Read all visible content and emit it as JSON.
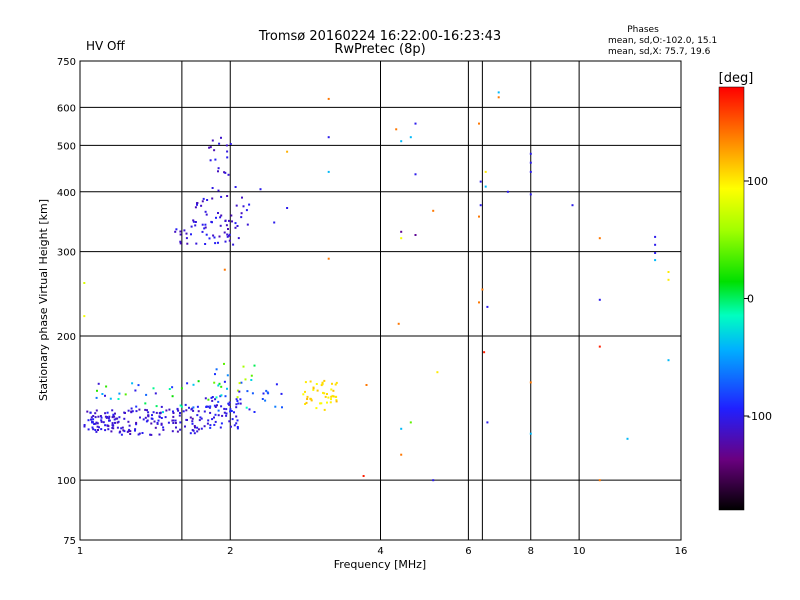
{
  "header": {
    "title_line1": "Tromsø 20160224 16:22:00-16:23:43",
    "title_line2": "RwPretec (8p)",
    "status": "HV Off",
    "status_color": "#cc0000",
    "phases_title": "Phases",
    "phases_line1": "mean, sd,O:-102.0, 15.1",
    "phases_line2": "mean, sd,X:  75.7, 19.6"
  },
  "colorbar": {
    "unit": "[deg]",
    "range": [
      -180,
      180
    ],
    "ticks": [
      {
        "value": 100,
        "label": "100"
      },
      {
        "value": 0,
        "label": "0"
      },
      {
        "value": -100,
        "label": "-100"
      }
    ]
  },
  "chart_data": {
    "type": "scatter",
    "title": "Tromsø 20160224 16:22:00-16:23:43",
    "subtitle": "RwPretec (8p)",
    "xlabel": "Frequency [MHz]",
    "ylabel": "Stationary phase Virtual Height [km]",
    "x_scale": "log",
    "y_scale": "log",
    "xlim": [
      1,
      16
    ],
    "ylim": [
      75,
      750
    ],
    "x_ticks": [
      {
        "v": 1,
        "label": "1"
      },
      {
        "v": 2,
        "label": "2"
      },
      {
        "v": 4,
        "label": "4"
      },
      {
        "v": 6,
        "label": "6"
      },
      {
        "v": 8,
        "label": "8"
      },
      {
        "v": 10,
        "label": "10"
      },
      {
        "v": 16,
        "label": "16"
      }
    ],
    "y_ticks": [
      {
        "v": 75,
        "label": "75"
      },
      {
        "v": 100,
        "label": "100"
      },
      {
        "v": 200,
        "label": "200"
      },
      {
        "v": 300,
        "label": "300"
      },
      {
        "v": 400,
        "label": "400"
      },
      {
        "v": 500,
        "label": "500"
      },
      {
        "v": 600,
        "label": "600"
      },
      {
        "v": 750,
        "label": "750"
      }
    ],
    "grid_x": [
      1.6,
      2,
      4,
      6,
      6.4,
      8,
      10,
      16
    ],
    "grid_y": [
      100,
      200,
      300,
      400,
      500,
      600
    ],
    "clusters": [
      {
        "f": [
          1.02,
          1.2
        ],
        "h": [
          126,
          140
        ],
        "n": 70,
        "ph": [
          -120,
          -95
        ]
      },
      {
        "f": [
          1.2,
          1.45
        ],
        "h": [
          124,
          142
        ],
        "n": 60,
        "ph": [
          -120,
          -95
        ]
      },
      {
        "f": [
          1.45,
          1.75
        ],
        "h": [
          125,
          143
        ],
        "n": 55,
        "ph": [
          -120,
          -95
        ]
      },
      {
        "f": [
          1.75,
          2.1
        ],
        "h": [
          128,
          150
        ],
        "n": 60,
        "ph": [
          -115,
          -90
        ]
      },
      {
        "f": [
          1.05,
          2.0
        ],
        "h": [
          138,
          162
        ],
        "n": 40,
        "ph": [
          -110,
          40
        ]
      },
      {
        "f": [
          1.85,
          2.25
        ],
        "h": [
          140,
          175
        ],
        "n": 25,
        "ph": [
          -110,
          80
        ]
      },
      {
        "f": [
          2.2,
          2.55
        ],
        "h": [
          138,
          160
        ],
        "n": 12,
        "ph": [
          -100,
          -60
        ]
      },
      {
        "f": [
          2.8,
          3.3
        ],
        "h": [
          140,
          162
        ],
        "n": 45,
        "ph": [
          90,
          120
        ]
      },
      {
        "f": [
          1.55,
          2.1
        ],
        "h": [
          310,
          350
        ],
        "n": 45,
        "ph": [
          -120,
          -95
        ]
      },
      {
        "f": [
          1.7,
          2.2
        ],
        "h": [
          340,
          390
        ],
        "n": 30,
        "ph": [
          -120,
          -95
        ]
      },
      {
        "f": [
          1.8,
          2.05
        ],
        "h": [
          390,
          520
        ],
        "n": 22,
        "ph": [
          -120,
          -95
        ]
      }
    ],
    "points": [
      {
        "f": 1.02,
        "h": 258,
        "ph": 80
      },
      {
        "f": 1.02,
        "h": 220,
        "ph": 90
      },
      {
        "f": 1.95,
        "h": 275,
        "ph": 140
      },
      {
        "f": 2.6,
        "h": 370,
        "ph": -100
      },
      {
        "f": 2.45,
        "h": 345,
        "ph": -100
      },
      {
        "f": 2.6,
        "h": 485,
        "ph": 120
      },
      {
        "f": 2.3,
        "h": 405,
        "ph": -100
      },
      {
        "f": 3.15,
        "h": 625,
        "ph": 140
      },
      {
        "f": 3.15,
        "h": 520,
        "ph": -100
      },
      {
        "f": 3.15,
        "h": 440,
        "ph": -40
      },
      {
        "f": 3.15,
        "h": 290,
        "ph": 140
      },
      {
        "f": 3.75,
        "h": 158,
        "ph": 140
      },
      {
        "f": 3.7,
        "h": 102,
        "ph": 170
      },
      {
        "f": 4.3,
        "h": 540,
        "ph": 140
      },
      {
        "f": 4.4,
        "h": 510,
        "ph": -40
      },
      {
        "f": 4.6,
        "h": 520,
        "ph": -40
      },
      {
        "f": 4.7,
        "h": 555,
        "ph": -100
      },
      {
        "f": 4.7,
        "h": 435,
        "ph": -100
      },
      {
        "f": 4.4,
        "h": 330,
        "ph": -130
      },
      {
        "f": 4.4,
        "h": 320,
        "ph": 90
      },
      {
        "f": 4.7,
        "h": 325,
        "ph": -130
      },
      {
        "f": 4.35,
        "h": 212,
        "ph": 140
      },
      {
        "f": 4.4,
        "h": 128,
        "ph": -40
      },
      {
        "f": 4.6,
        "h": 132,
        "ph": 40
      },
      {
        "f": 4.4,
        "h": 113,
        "ph": 140
      },
      {
        "f": 5.1,
        "h": 365,
        "ph": 140
      },
      {
        "f": 5.2,
        "h": 168,
        "ph": 100
      },
      {
        "f": 5.1,
        "h": 100,
        "ph": -100
      },
      {
        "f": 6.3,
        "h": 555,
        "ph": 140
      },
      {
        "f": 6.35,
        "h": 420,
        "ph": -100
      },
      {
        "f": 6.5,
        "h": 410,
        "ph": -40
      },
      {
        "f": 6.5,
        "h": 440,
        "ph": 100
      },
      {
        "f": 6.35,
        "h": 375,
        "ph": -100
      },
      {
        "f": 6.3,
        "h": 355,
        "ph": 140
      },
      {
        "f": 6.4,
        "h": 250,
        "ph": 140
      },
      {
        "f": 6.3,
        "h": 235,
        "ph": 140
      },
      {
        "f": 6.55,
        "h": 230,
        "ph": -100
      },
      {
        "f": 6.45,
        "h": 185,
        "ph": 170
      },
      {
        "f": 6.55,
        "h": 132,
        "ph": -100
      },
      {
        "f": 6.9,
        "h": 645,
        "ph": -40
      },
      {
        "f": 6.9,
        "h": 630,
        "ph": 140
      },
      {
        "f": 7.2,
        "h": 400,
        "ph": -100
      },
      {
        "f": 8.0,
        "h": 480,
        "ph": -100
      },
      {
        "f": 8.0,
        "h": 460,
        "ph": -100
      },
      {
        "f": 8.0,
        "h": 440,
        "ph": -100
      },
      {
        "f": 8.0,
        "h": 395,
        "ph": -100
      },
      {
        "f": 8.0,
        "h": 160,
        "ph": 140
      },
      {
        "f": 8.0,
        "h": 125,
        "ph": -40
      },
      {
        "f": 9.7,
        "h": 375,
        "ph": -100
      },
      {
        "f": 11.0,
        "h": 320,
        "ph": 140
      },
      {
        "f": 11.0,
        "h": 238,
        "ph": -100
      },
      {
        "f": 11.0,
        "h": 190,
        "ph": 170
      },
      {
        "f": 11.0,
        "h": 100,
        "ph": 140
      },
      {
        "f": 12.5,
        "h": 122,
        "ph": -40
      },
      {
        "f": 14.2,
        "h": 322,
        "ph": -100
      },
      {
        "f": 14.2,
        "h": 310,
        "ph": -100
      },
      {
        "f": 14.2,
        "h": 298,
        "ph": -100
      },
      {
        "f": 14.2,
        "h": 288,
        "ph": -40
      },
      {
        "f": 15.1,
        "h": 272,
        "ph": 100
      },
      {
        "f": 15.1,
        "h": 262,
        "ph": 100
      },
      {
        "f": 15.1,
        "h": 178,
        "ph": -40
      }
    ]
  }
}
